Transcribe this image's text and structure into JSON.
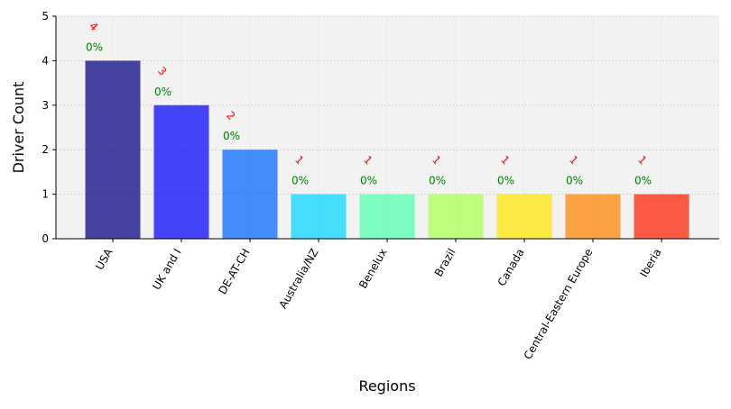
{
  "chart_data": {
    "type": "bar",
    "xlabel": "Regions",
    "ylabel": "Driver Count",
    "ylim": [
      0,
      5
    ],
    "yticks": [
      "0",
      "1",
      "2",
      "3",
      "4",
      "5"
    ],
    "grid": true,
    "background": "#f2f2f2",
    "categories": [
      "USA",
      "UK and I",
      "DE-AT-CH",
      "Australia/NZ",
      "Benelux",
      "Brazil",
      "Canada",
      "Central-Eastern Europe",
      "Iberia"
    ],
    "values": [
      4,
      3,
      2,
      1,
      1,
      1,
      1,
      1,
      1
    ],
    "count_labels": [
      "4",
      "3",
      "2",
      "1",
      "1",
      "1",
      "1",
      "1",
      "1"
    ],
    "percent_labels": [
      "0%",
      "0%",
      "0%",
      "0%",
      "0%",
      "0%",
      "0%",
      "0%",
      "0%"
    ],
    "colors": [
      "#00007f",
      "#0000ff",
      "#0063ff",
      "#00d4ff",
      "#4effa9",
      "#a9ff4e",
      "#ffe500",
      "#ff7f00",
      "#ff1e00"
    ]
  }
}
